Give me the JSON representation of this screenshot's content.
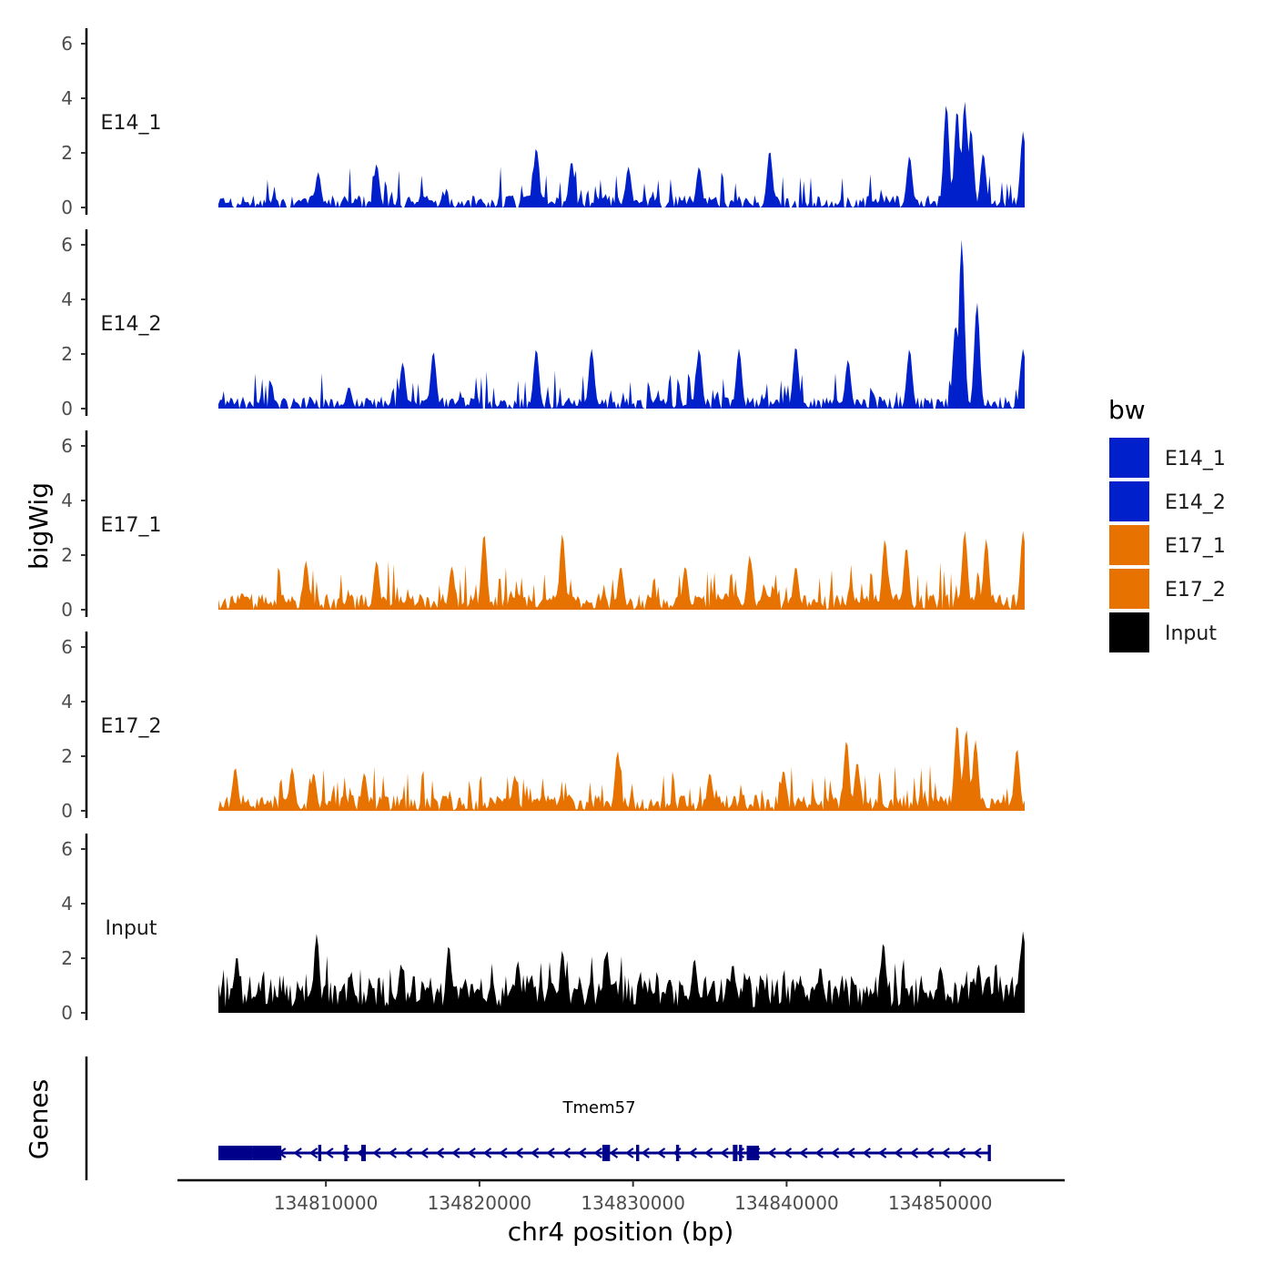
{
  "chart_data": {
    "type": "area",
    "y_axis_title": "bigWig",
    "x_axis_title": "chr4 position (bp)",
    "xlim": [
      134803000,
      134855500
    ],
    "ylim": [
      0,
      6.2
    ],
    "y_ticks": [
      "0",
      "2",
      "4",
      "6"
    ],
    "x_ticks": [
      {
        "value": 134810000,
        "label": "134810000"
      },
      {
        "value": 134820000,
        "label": "134820000"
      },
      {
        "value": 134830000,
        "label": "134830000"
      },
      {
        "value": 134840000,
        "label": "134840000"
      },
      {
        "value": 134850000,
        "label": "134850000"
      }
    ],
    "legend": {
      "title": "bw",
      "entries": [
        {
          "name": "E14_1",
          "color": "#0020CC"
        },
        {
          "name": "E14_2",
          "color": "#0020CC"
        },
        {
          "name": "E17_1",
          "color": "#E87200"
        },
        {
          "name": "E17_2",
          "color": "#E87200"
        },
        {
          "name": "Input",
          "color": "#000000"
        }
      ]
    },
    "tracks": [
      {
        "name": "E14_1",
        "label": "E14_1",
        "color": "#0020CC",
        "seed": 11,
        "peaks": [
          [
            134809500,
            1.3
          ],
          [
            134813300,
            1.6
          ],
          [
            134823700,
            2.2
          ],
          [
            134826000,
            1.7
          ],
          [
            134829700,
            1.5
          ],
          [
            134834300,
            1.5
          ],
          [
            134838900,
            2.1
          ],
          [
            134848000,
            1.9
          ],
          [
            134850400,
            3.8
          ],
          [
            134851100,
            3.6
          ],
          [
            134851600,
            3.9
          ],
          [
            134852000,
            2.9
          ],
          [
            134852800,
            2.0
          ],
          [
            134855400,
            2.8
          ]
        ]
      },
      {
        "name": "E14_2",
        "label": "E14_2",
        "color": "#0020CC",
        "seed": 23,
        "peaks": [
          [
            134811500,
            0.8
          ],
          [
            134815000,
            1.7
          ],
          [
            134817000,
            2.1
          ],
          [
            134823700,
            2.2
          ],
          [
            134827300,
            2.2
          ],
          [
            134834300,
            2.2
          ],
          [
            134836900,
            2.2
          ],
          [
            134840600,
            2.3
          ],
          [
            134844000,
            1.8
          ],
          [
            134848000,
            2.2
          ],
          [
            134851000,
            3.1
          ],
          [
            134851400,
            6.2
          ],
          [
            134852400,
            3.9
          ],
          [
            134855400,
            2.2
          ]
        ]
      },
      {
        "name": "E17_1",
        "label": "E17_1",
        "color": "#E87200",
        "seed": 37,
        "peaks": [
          [
            134808700,
            1.8
          ],
          [
            134813300,
            1.8
          ],
          [
            134818200,
            1.6
          ],
          [
            134820300,
            2.8
          ],
          [
            134825400,
            2.8
          ],
          [
            134829200,
            1.6
          ],
          [
            134833400,
            1.6
          ],
          [
            134837600,
            2.0
          ],
          [
            134840600,
            1.6
          ],
          [
            134847800,
            2.3
          ],
          [
            134846400,
            2.6
          ],
          [
            134851600,
            2.9
          ],
          [
            134853000,
            2.6
          ],
          [
            134855400,
            2.9
          ]
        ]
      },
      {
        "name": "E17_2",
        "label": "E17_2",
        "color": "#E87200",
        "seed": 53,
        "peaks": [
          [
            134804100,
            1.6
          ],
          [
            134807800,
            1.6
          ],
          [
            134809200,
            1.4
          ],
          [
            134812500,
            1.4
          ],
          [
            134822300,
            1.3
          ],
          [
            134829000,
            2.2
          ],
          [
            134835000,
            1.4
          ],
          [
            134839800,
            1.5
          ],
          [
            134843900,
            2.6
          ],
          [
            134844600,
            1.8
          ],
          [
            134851100,
            3.2
          ],
          [
            134851700,
            3.0
          ],
          [
            134852300,
            2.6
          ],
          [
            134855000,
            2.3
          ]
        ]
      },
      {
        "name": "Input",
        "label": "Input",
        "color": "#000000",
        "seed": 71,
        "peaks": [
          [
            134804200,
            2.1
          ],
          [
            134809400,
            2.9
          ],
          [
            134814900,
            1.8
          ],
          [
            134818000,
            2.5
          ],
          [
            134822500,
            1.9
          ],
          [
            134825400,
            2.3
          ],
          [
            134828300,
            2.3
          ],
          [
            134834000,
            2.0
          ],
          [
            134836500,
            1.8
          ],
          [
            134842200,
            1.7
          ],
          [
            134846300,
            2.6
          ],
          [
            134850000,
            1.7
          ],
          [
            134852500,
            1.8
          ],
          [
            134855400,
            3.0
          ]
        ]
      }
    ],
    "genes_track": {
      "y_axis_title": "Genes",
      "gene_name": "Tmem57",
      "strand": "-",
      "start": 134803000,
      "end": 134853200,
      "exons": [
        [
          134803000,
          134805200
        ],
        [
          134805200,
          134807100
        ],
        [
          134809500,
          134809700
        ],
        [
          134811200,
          134811400
        ],
        [
          134812300,
          134812600
        ],
        [
          134828000,
          134828500
        ],
        [
          134830200,
          134830400
        ],
        [
          134832800,
          134833000
        ],
        [
          134836500,
          134836800
        ],
        [
          134836900,
          134837100
        ],
        [
          134837400,
          134838200
        ],
        [
          134853100,
          134853300
        ]
      ]
    }
  }
}
